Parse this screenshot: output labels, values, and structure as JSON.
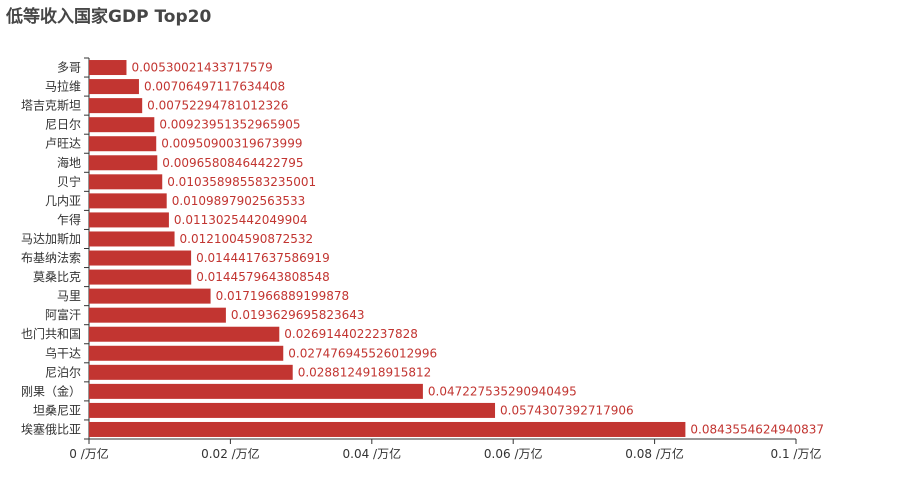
{
  "chart_data": {
    "type": "bar",
    "orientation": "horizontal",
    "title": "低等收入国家GDP Top20",
    "xlabel": "",
    "ylabel": "",
    "xlim": [
      0,
      0.1
    ],
    "x_ticks": [
      "0 /万亿",
      "0.02 /万亿",
      "0.04 /万亿",
      "0.06 /万亿",
      "0.08 /万亿",
      "0.1 /万亿"
    ],
    "x_tick_values": [
      0,
      0.02,
      0.04,
      0.06,
      0.08,
      0.1
    ],
    "bar_color": "#c23531",
    "categories": [
      "多哥",
      "马拉维",
      "塔吉克斯坦",
      "尼日尔",
      "卢旺达",
      "海地",
      "贝宁",
      "几内亚",
      "乍得",
      "马达加斯加",
      "布基纳法索",
      "莫桑比克",
      "马里",
      "阿富汗",
      "也门共和国",
      "乌干达",
      "尼泊尔",
      "刚果（金）",
      "坦桑尼亚",
      "埃塞俄比亚"
    ],
    "values": [
      0.00530021433717579,
      0.00706497117634408,
      0.00752294781012326,
      0.00923951352965905,
      0.00950900319673999,
      0.00965808464422795,
      0.010358985583235001,
      0.0109897902563533,
      0.0113025442049904,
      0.0121004590872532,
      0.0144417637586919,
      0.0144579643808548,
      0.0171966889199878,
      0.0193629695823643,
      0.0269144022237828,
      0.027476945526012996,
      0.0288124918915812,
      0.047227535290940495,
      0.0574307392717906,
      0.0843554624940837
    ],
    "value_labels": [
      "0.00530021433717579",
      "0.00706497117634408",
      "0.00752294781012326",
      "0.00923951352965905",
      "0.00950900319673999",
      "0.00965808464422795",
      "0.010358985583235001",
      "0.0109897902563533",
      "0.0113025442049904",
      "0.0121004590872532",
      "0.0144417637586919",
      "0.0144579643808548",
      "0.0171966889199878",
      "0.0193629695823643",
      "0.0269144022237828",
      "0.027476945526012996",
      "0.0288124918915812",
      "0.047227535290940495",
      "0.0574307392717906",
      "0.0843554624940837"
    ]
  }
}
